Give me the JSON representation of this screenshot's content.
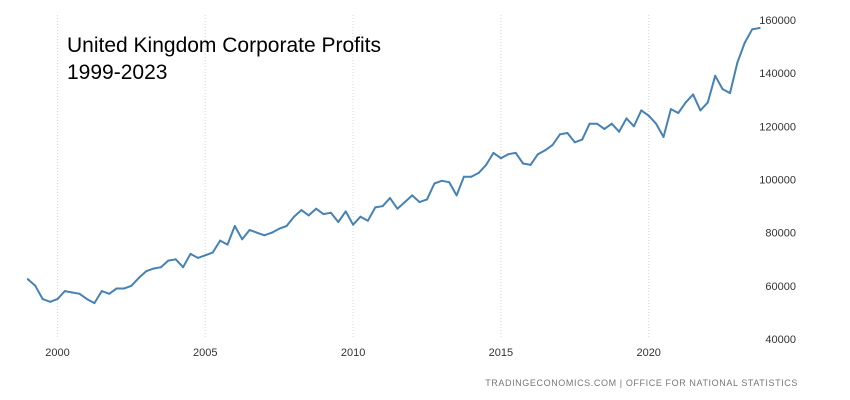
{
  "chart_data": {
    "type": "line",
    "title": [
      "United Kingdom Corporate Profits",
      "1999-2023"
    ],
    "source": "TRADINGECONOMICS.COM | OFFICE FOR NATIONAL STATISTICS",
    "xlabel": "",
    "ylabel": "",
    "xlim": [
      1998.8,
      2023.9
    ],
    "ylim": [
      40000,
      160000
    ],
    "x_ticks": [
      2000,
      2005,
      2010,
      2015,
      2020
    ],
    "y_ticks": [
      40000,
      60000,
      80000,
      100000,
      120000,
      140000,
      160000
    ],
    "grid": "vertical dotted lines at x ticks",
    "colors": {
      "line": "#4682b4"
    },
    "series": [
      {
        "x": [
          1999.0,
          1999.25,
          1999.5,
          1999.75,
          2000.0,
          2000.25,
          2000.5,
          2000.75,
          2001.0,
          2001.25,
          2001.5,
          2001.75,
          2002.0,
          2002.25,
          2002.5,
          2002.75,
          2003.0,
          2003.25,
          2003.5,
          2003.75,
          2004.0,
          2004.25,
          2004.5,
          2004.75,
          2005.0,
          2005.25,
          2005.5,
          2005.75,
          2006.0,
          2006.25,
          2006.5,
          2006.75,
          2007.0,
          2007.25,
          2007.5,
          2007.75,
          2008.0,
          2008.25,
          2008.5,
          2008.75,
          2009.0,
          2009.25,
          2009.5,
          2009.75,
          2010.0,
          2010.25,
          2010.5,
          2010.75,
          2011.0,
          2011.25,
          2011.5,
          2011.75,
          2012.0,
          2012.25,
          2012.5,
          2012.75,
          2013.0,
          2013.25,
          2013.5,
          2013.75,
          2014.0,
          2014.25,
          2014.5,
          2014.75,
          2015.0,
          2015.25,
          2015.5,
          2015.75,
          2016.0,
          2016.25,
          2016.5,
          2016.75,
          2017.0,
          2017.25,
          2017.5,
          2017.75,
          2018.0,
          2018.25,
          2018.5,
          2018.75,
          2019.0,
          2019.25,
          2019.5,
          2019.75,
          2020.0,
          2020.25,
          2020.5,
          2020.75,
          2021.0,
          2021.25,
          2021.5,
          2021.75,
          2022.0,
          2022.25,
          2022.5,
          2022.75,
          2023.0,
          2023.25,
          2023.5,
          2023.75
        ],
        "values": [
          62500,
          60000,
          55000,
          54000,
          55000,
          58000,
          57500,
          57000,
          55000,
          53500,
          58000,
          57000,
          59000,
          59000,
          60000,
          63000,
          65500,
          66500,
          67000,
          69500,
          70000,
          67000,
          72000,
          70500,
          71500,
          72500,
          77000,
          75500,
          82500,
          77500,
          81000,
          80000,
          79000,
          80000,
          81500,
          82500,
          86000,
          88500,
          86500,
          89000,
          87000,
          87500,
          84000,
          88000,
          83000,
          86000,
          84500,
          89500,
          90000,
          93000,
          89000,
          91500,
          94000,
          91500,
          92500,
          98500,
          99500,
          99000,
          94000,
          101000,
          101000,
          102500,
          105500,
          110000,
          108000,
          109500,
          110000,
          106000,
          105500,
          109500,
          111000,
          113000,
          117000,
          117500,
          114000,
          115000,
          121000,
          121000,
          119000,
          121000,
          118000,
          123000,
          120000,
          126000,
          124000,
          121000,
          116000,
          126500,
          125000,
          129000,
          132000,
          126000,
          129000,
          139000,
          134000,
          132500,
          144000,
          151500,
          156500,
          157000
        ]
      }
    ]
  }
}
